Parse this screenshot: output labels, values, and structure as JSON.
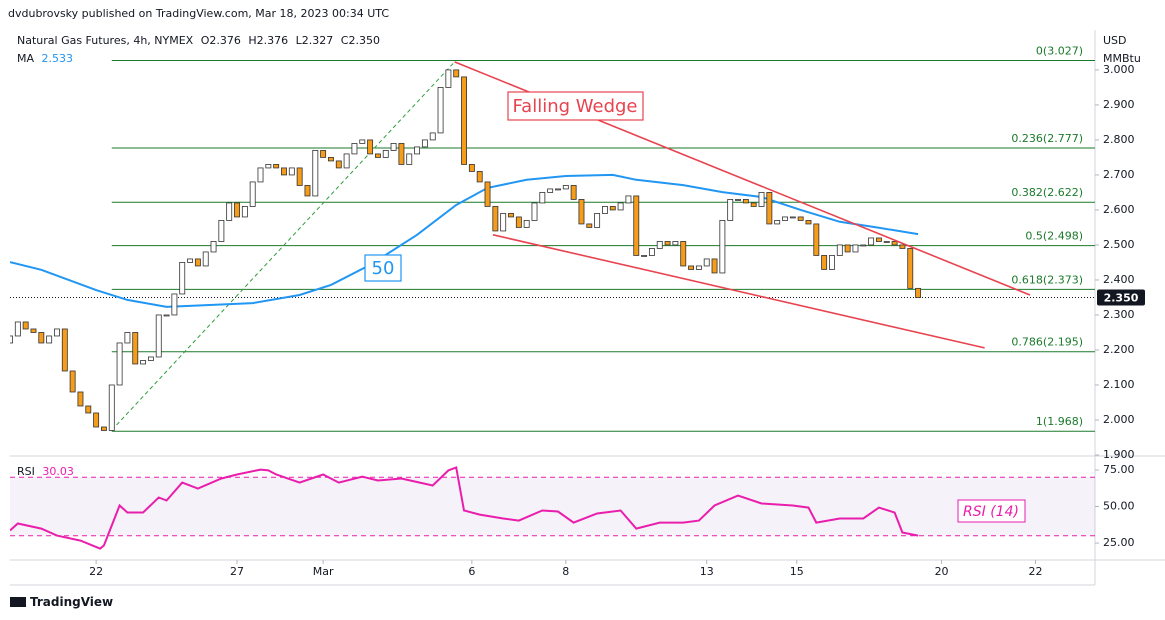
{
  "chart_data": {
    "type": "candlestick",
    "publisher_line": "dvdubrovsky published on TradingView.com, Mar 18, 2023 00:34 UTC",
    "title": "Natural Gas Futures, 4h, NYMEX",
    "ohlc": [
      "O2.376",
      "H2.376",
      "L2.327",
      "C2.350"
    ],
    "currency": "USD",
    "unit": "MMBtu",
    "xlim": [
      0,
      138.6
    ],
    "xticks": [
      {
        "value": 11,
        "label": "22"
      },
      {
        "value": 29,
        "label": "27"
      },
      {
        "value": 40,
        "label": "Mar"
      },
      {
        "value": 59,
        "label": "6"
      },
      {
        "value": 71,
        "label": "8"
      },
      {
        "value": 89,
        "label": "13"
      },
      {
        "value": 100.5,
        "label": "15"
      },
      {
        "value": 119,
        "label": "20"
      },
      {
        "value": 131,
        "label": "22"
      }
    ],
    "ylim": [
      1.9,
      3.114
    ],
    "yticks": [
      {
        "value": 1.9,
        "label": "1.900"
      },
      {
        "value": 2.0,
        "label": "2.000"
      },
      {
        "value": 2.1,
        "label": "2.100"
      },
      {
        "value": 2.2,
        "label": "2.200"
      },
      {
        "value": 2.3,
        "label": "2.300"
      },
      {
        "value": 2.4,
        "label": "2.400"
      },
      {
        "value": 2.5,
        "label": "2.500"
      },
      {
        "value": 2.6,
        "label": "2.600"
      },
      {
        "value": 2.7,
        "label": "2.700"
      },
      {
        "value": 2.8,
        "label": "2.800"
      },
      {
        "value": 2.9,
        "label": "2.900"
      },
      {
        "value": 3.0,
        "label": "3.000"
      }
    ],
    "candles": {
      "up_color": "#ffffff",
      "down_color": "#f59c1a",
      "open": [
        2.22,
        2.24,
        2.28,
        2.26,
        2.25,
        2.22,
        2.24,
        2.26,
        2.14,
        2.08,
        2.04,
        2.02,
        1.98,
        1.97,
        2.1,
        2.22,
        2.25,
        2.16,
        2.17,
        2.18,
        2.3,
        2.3,
        2.36,
        2.45,
        2.46,
        2.44,
        2.48,
        2.51,
        2.57,
        2.62,
        2.58,
        2.61,
        2.68,
        2.72,
        2.73,
        2.72,
        2.7,
        2.72,
        2.67,
        2.64,
        2.77,
        2.75,
        2.74,
        2.72,
        2.76,
        2.79,
        2.8,
        2.76,
        2.75,
        2.77,
        2.79,
        2.73,
        2.76,
        2.78,
        2.8,
        2.82,
        2.95,
        3.0,
        2.98,
        2.73,
        2.71,
        2.68,
        2.61,
        2.54,
        2.59,
        2.58,
        2.55,
        2.57,
        2.62,
        2.65,
        2.66,
        2.66,
        2.67,
        2.63,
        2.56,
        2.55,
        2.59,
        2.61,
        2.6,
        2.62,
        2.64,
        2.47,
        2.47,
        2.49,
        2.51,
        2.5,
        2.51,
        2.44,
        2.43,
        2.44,
        2.46,
        2.42,
        2.57,
        2.63,
        2.63,
        2.62,
        2.61,
        2.65,
        2.56,
        2.57,
        2.58,
        2.58,
        2.57,
        2.56,
        2.47,
        2.43,
        2.47,
        2.5,
        2.48,
        2.5,
        2.5,
        2.52,
        2.51,
        2.51,
        2.5,
        2.49,
        2.376
      ],
      "close": [
        2.24,
        2.28,
        2.26,
        2.25,
        2.22,
        2.24,
        2.26,
        2.14,
        2.08,
        2.04,
        2.02,
        1.98,
        1.97,
        2.1,
        2.22,
        2.25,
        2.16,
        2.17,
        2.18,
        2.3,
        2.3,
        2.36,
        2.45,
        2.46,
        2.44,
        2.48,
        2.51,
        2.57,
        2.62,
        2.58,
        2.61,
        2.68,
        2.72,
        2.73,
        2.72,
        2.7,
        2.72,
        2.67,
        2.64,
        2.77,
        2.75,
        2.74,
        2.72,
        2.76,
        2.79,
        2.8,
        2.76,
        2.75,
        2.77,
        2.79,
        2.73,
        2.76,
        2.78,
        2.8,
        2.82,
        2.95,
        3.0,
        2.98,
        2.73,
        2.71,
        2.68,
        2.61,
        2.54,
        2.59,
        2.58,
        2.55,
        2.57,
        2.62,
        2.65,
        2.66,
        2.66,
        2.67,
        2.63,
        2.56,
        2.55,
        2.59,
        2.61,
        2.6,
        2.62,
        2.64,
        2.47,
        2.47,
        2.49,
        2.51,
        2.5,
        2.51,
        2.44,
        2.43,
        2.44,
        2.46,
        2.42,
        2.57,
        2.63,
        2.63,
        2.62,
        2.61,
        2.65,
        2.56,
        2.57,
        2.58,
        2.58,
        2.57,
        2.56,
        2.47,
        2.43,
        2.47,
        2.5,
        2.48,
        2.5,
        2.5,
        2.52,
        2.51,
        2.51,
        2.5,
        2.49,
        2.376,
        2.35
      ]
    },
    "ma": {
      "name": "MA",
      "last": 2.533,
      "color": "#2196f3",
      "x": [
        0,
        4,
        11,
        15,
        20,
        31,
        37,
        41,
        46,
        52,
        57,
        61,
        66,
        71,
        77,
        80,
        86,
        91,
        96,
        101,
        106,
        111,
        116
      ],
      "values": [
        2.451,
        2.429,
        2.371,
        2.343,
        2.323,
        2.334,
        2.357,
        2.386,
        2.443,
        2.529,
        2.614,
        2.663,
        2.686,
        2.697,
        2.7,
        2.686,
        2.671,
        2.651,
        2.637,
        2.6,
        2.566,
        2.549,
        2.531
      ]
    },
    "ma_label": "50",
    "fib_color": "#1b7a2a",
    "fib_levels": [
      {
        "value": 3.027,
        "label": "0(3.027)"
      },
      {
        "value": 2.777,
        "label": "0.236(2.777)"
      },
      {
        "value": 2.622,
        "label": "0.382(2.622)"
      },
      {
        "value": 2.498,
        "label": "0.5(2.498)"
      },
      {
        "value": 2.373,
        "label": "0.618(2.373)"
      },
      {
        "value": 2.195,
        "label": "0.786(2.195)"
      },
      {
        "value": 1.968,
        "label": "1(1.968)"
      }
    ],
    "impulse_line": {
      "color": "#2e9e3a",
      "x": [
        13,
        56.8
      ],
      "values": [
        1.971,
        3.023
      ]
    },
    "wedge_color": "#e8434f",
    "wedge_upper": {
      "x": [
        56.8,
        130.3
      ],
      "values": [
        3.023,
        2.357
      ]
    },
    "wedge_lower": {
      "x": [
        61.7,
        124.5
      ],
      "values": [
        2.529,
        2.206
      ]
    },
    "pattern_label": "Falling Wedge",
    "last_price": {
      "value": 2.35,
      "label": "2.350"
    },
    "rsi": {
      "name": "RSI",
      "last": 30.03,
      "tag": "RSI (14)",
      "color": "#e91eac",
      "ylim": [
        13.4,
        83.9
      ],
      "yticks": [
        {
          "value": 75,
          "label": "75.00"
        },
        {
          "value": 50,
          "label": "50.00"
        },
        {
          "value": 25,
          "label": "25.00"
        }
      ],
      "bands": [
        30,
        70
      ],
      "x": [
        0,
        1,
        4,
        6,
        9,
        11.5,
        12,
        14,
        15,
        17,
        19,
        20,
        22,
        24,
        27,
        29,
        32,
        33,
        34,
        37,
        40,
        42,
        45,
        47,
        50,
        54,
        56,
        57,
        58,
        60,
        63,
        65,
        68,
        70,
        72,
        75,
        78,
        80,
        83,
        86,
        88,
        90,
        93,
        96,
        100,
        102,
        103,
        106,
        109,
        111,
        113,
        114,
        116
      ],
      "values": [
        33.6,
        38.4,
        34.9,
        30.1,
        26.7,
        21.2,
        23.3,
        50.7,
        45.9,
        45.9,
        56.2,
        54.1,
        66.4,
        62.3,
        69.2,
        71.9,
        75.3,
        74.7,
        71.9,
        66.4,
        71.9,
        66.4,
        70.5,
        67.8,
        69.2,
        64.4,
        74.7,
        76.7,
        47.3,
        44.5,
        41.8,
        40.4,
        47.3,
        46.6,
        39.0,
        45.2,
        47.3,
        34.9,
        39.0,
        39.0,
        40.4,
        50.7,
        57.5,
        52.1,
        50.7,
        49.3,
        39.0,
        41.8,
        41.8,
        49.3,
        45.9,
        32.2,
        30.1
      ]
    },
    "footer": "TradingView"
  }
}
